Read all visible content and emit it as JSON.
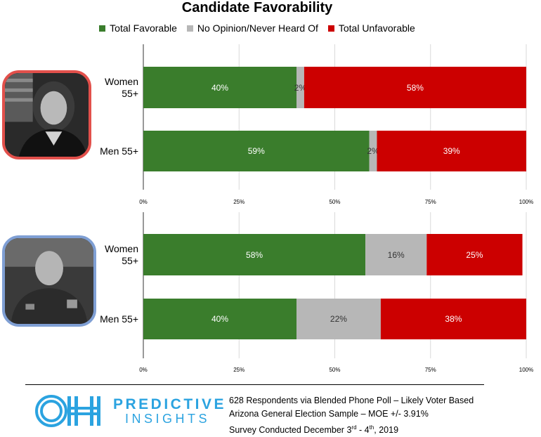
{
  "chart_data": [
    {
      "type": "bar",
      "orientation": "horizontal",
      "stacked": true,
      "title": "Candidate Favorability",
      "categories": [
        "Women 55+",
        "Men 55+"
      ],
      "series": [
        {
          "name": "Total Favorable",
          "values": [
            40,
            59
          ],
          "color": "#3a7d2c"
        },
        {
          "name": "No Opinion/Never Heard Of",
          "values": [
            2,
            2
          ],
          "color": "#b7b7b7"
        },
        {
          "name": "Total Unfavorable",
          "values": [
            58,
            39
          ],
          "color": "#cc0000"
        }
      ],
      "xlim": [
        0,
        100
      ],
      "x_ticks": [
        "0%",
        "25%",
        "50%",
        "75%",
        "100%"
      ],
      "grid": true,
      "legend": "top"
    },
    {
      "type": "bar",
      "orientation": "horizontal",
      "stacked": true,
      "categories": [
        "Women 55+",
        "Men 55+"
      ],
      "series": [
        {
          "name": "Total Favorable",
          "values": [
            58,
            40
          ],
          "color": "#3a7d2c"
        },
        {
          "name": "No Opinion/Never Heard Of",
          "values": [
            16,
            22
          ],
          "color": "#b7b7b7"
        },
        {
          "name": "Total Unfavorable",
          "values": [
            25,
            38
          ],
          "color": "#cc0000"
        }
      ],
      "xlim": [
        0,
        100
      ],
      "x_ticks": [
        "0%",
        "25%",
        "50%",
        "75%",
        "100%"
      ],
      "grid": true
    }
  ],
  "panel_labels": [
    {
      "line1": "Women",
      "line2": "55+",
      "single": ""
    },
    {
      "line1": "",
      "line2": "",
      "single": "Men 55+"
    }
  ],
  "colors": {
    "favorable": "#3a7d2c",
    "no_opinion": "#b7b7b7",
    "unfavorable": "#cc0000",
    "accent_red": "#e2504b",
    "accent_blue": "#7f9fd4",
    "brand": "#2ba3e0"
  },
  "legend_items": [
    "Total Favorable",
    "No Opinion/Never Heard Of",
    "Total Unfavorable"
  ],
  "photos": {
    "top_icon": "candidate-photo-woman",
    "bottom_icon": "candidate-photo-man"
  },
  "logo": {
    "mark": "OH",
    "word1": "PREDICTIVE",
    "word2": "INSIGHTS"
  },
  "footnote": {
    "line1": "628 Respondents via Blended Phone Poll – Likely Voter Based",
    "line2": "Arizona General Election Sample – MOE +/- 3.91%",
    "line3_a": "Survey Conducted December 3",
    "line3_sup1": "rd",
    "line3_b": " - 4",
    "line3_sup2": "th",
    "line3_c": ", 2019"
  }
}
